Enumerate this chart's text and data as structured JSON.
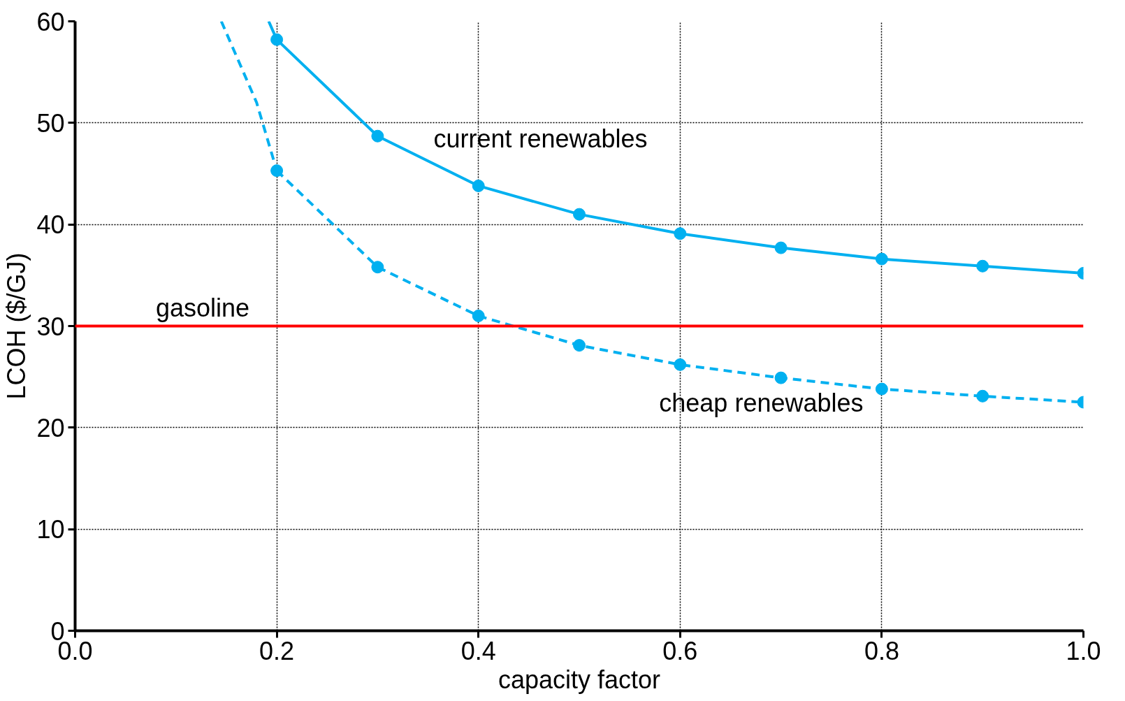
{
  "chart_data": {
    "type": "line",
    "xlabel": "capacity factor",
    "ylabel": "LCOH ($/GJ)",
    "xlim": [
      0,
      1
    ],
    "xticks": [
      {
        "value": 0,
        "label": "0.0"
      },
      0.2,
      0.4,
      0.6,
      0.8,
      {
        "value": 1,
        "label": "1.0"
      }
    ],
    "ylim": [
      0,
      60
    ],
    "yticks": [
      0,
      10,
      20,
      30,
      40,
      50,
      60
    ],
    "grid": true,
    "marker": "circle",
    "series": [
      {
        "name": "current renewables",
        "color": "#00b0f0",
        "line_style": "solid",
        "x": [
          0.2,
          0.3,
          0.4,
          0.5,
          0.6,
          0.7,
          0.8,
          0.9,
          1.0
        ],
        "values": [
          58.2,
          48.7,
          43.8,
          41.0,
          39.1,
          37.7,
          36.6,
          35.9,
          35.2
        ]
      },
      {
        "name": "cheap renewables",
        "color": "#00b0f0",
        "line_style": "dashed",
        "x": [
          0.2,
          0.3,
          0.4,
          0.5,
          0.6,
          0.7,
          0.8,
          0.9,
          1.0
        ],
        "values": [
          45.3,
          35.8,
          31.0,
          28.1,
          26.2,
          24.9,
          23.8,
          23.1,
          22.5
        ]
      },
      {
        "color": "#00b0f0",
        "line_style": "solid",
        "marker": "none",
        "x": [
          0.192,
          0.2
        ],
        "values": [
          60,
          58.2
        ]
      },
      {
        "color": "#00b0f0",
        "line_style": "dashed",
        "marker": "none",
        "x": [
          0.145,
          0.18,
          0.2
        ],
        "values": [
          60,
          52,
          45.3
        ]
      }
    ],
    "ref_lines": [
      {
        "axis": "y",
        "value": 30,
        "color": "#ff0000",
        "label": "gasoline"
      }
    ]
  }
}
